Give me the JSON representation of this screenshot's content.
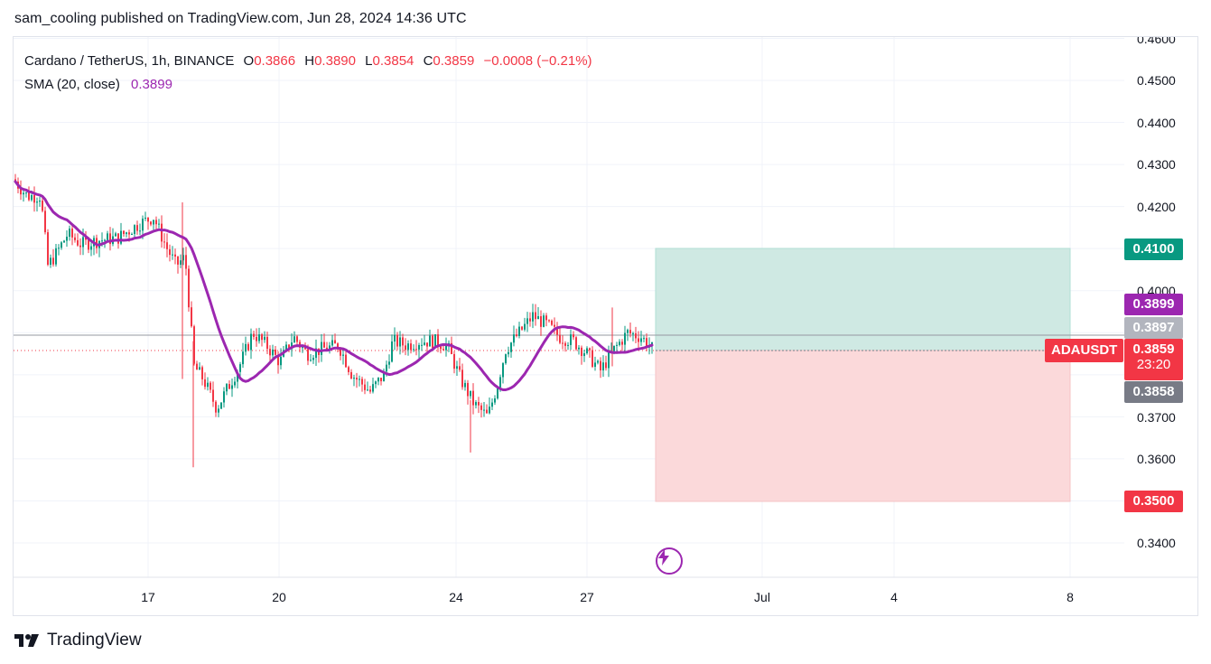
{
  "header": {
    "published": "sam_cooling published on TradingView.com, Jun 28, 2024 14:36 UTC"
  },
  "legend": {
    "symbol": "Cardano / TetherUS, 1h, BINANCE",
    "open_label": "O",
    "open": "0.3866",
    "high_label": "H",
    "high": "0.3890",
    "low_label": "L",
    "low": "0.3854",
    "close_label": "C",
    "close": "0.3859",
    "change": "−0.0008 (−0.21%)",
    "sma_label": "SMA (20, close)",
    "sma_value": "0.3899"
  },
  "price_axis": {
    "ticks": [
      "0.4600",
      "0.4500",
      "0.4400",
      "0.4300",
      "0.4200",
      "0.4000",
      "0.3700",
      "0.3600",
      "0.3400"
    ]
  },
  "time_axis": {
    "ticks": [
      "17",
      "20",
      "24",
      "27",
      "Jul",
      "4",
      "8"
    ]
  },
  "badges": {
    "target": "0.4100",
    "sma": "0.3899",
    "high_line": "0.3897",
    "last_price": "0.3859",
    "countdown": "23:20",
    "low_line": "0.3858",
    "stop": "0.3500",
    "symbol_tag": "ADAUSDT"
  },
  "colors": {
    "up": "#089981",
    "down": "#f23645",
    "sma": "#9c27b0",
    "profit_zone": "#cfe9e3",
    "loss_zone": "#fbd9da",
    "target_badge": "#089981",
    "stop_badge": "#f23645",
    "sma_badge": "#9c27b0",
    "gray_badge": "#787b86"
  },
  "footer": {
    "brand": "TradingView"
  }
}
